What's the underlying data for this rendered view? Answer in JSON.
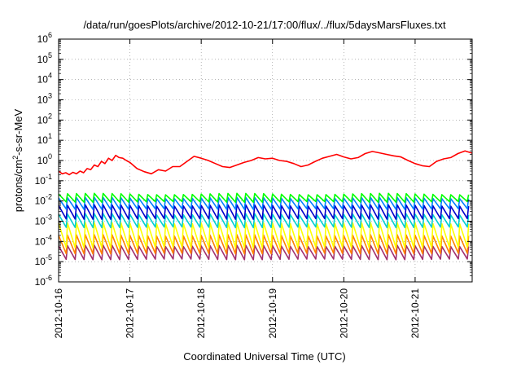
{
  "chart_data": {
    "type": "line",
    "title": "/data/run/goesPlots/archive/2012-10-21/17:00/flux/../flux/5daysMarsFluxes.txt",
    "xlabel": "Coordinated Universal Time (UTC)",
    "ylabel": "protons/cm2-s-sr-MeV",
    "ylabel_parts": {
      "pre": "protons/cm",
      "sup": "2",
      "post": "-s-sr-MeV"
    },
    "x_ticks": [
      "2012-10-16",
      "2012-10-17",
      "2012-10-18",
      "2012-10-19",
      "2012-10-20",
      "2012-10-21"
    ],
    "xlim_days": [
      0,
      5.8
    ],
    "y_scale": "log",
    "ylim": [
      1e-06,
      1000000.0
    ],
    "y_ticks": [
      {
        "base": "10",
        "exp": "-6"
      },
      {
        "base": "10",
        "exp": "-5"
      },
      {
        "base": "10",
        "exp": "-4"
      },
      {
        "base": "10",
        "exp": "-3"
      },
      {
        "base": "10",
        "exp": "-2"
      },
      {
        "base": "10",
        "exp": "-1"
      },
      {
        "base": "10",
        "exp": "0"
      },
      {
        "base": "10",
        "exp": "1"
      },
      {
        "base": "10",
        "exp": "2"
      },
      {
        "base": "10",
        "exp": "3"
      },
      {
        "base": "10",
        "exp": "4"
      },
      {
        "base": "10",
        "exp": "5"
      },
      {
        "base": "10",
        "exp": "6"
      }
    ],
    "grid": true,
    "legend": "none",
    "series": [
      {
        "color": "#ff0000",
        "x": [
          0.0,
          0.05,
          0.1,
          0.15,
          0.2,
          0.25,
          0.3,
          0.35,
          0.4,
          0.45,
          0.5,
          0.55,
          0.6,
          0.65,
          0.7,
          0.75,
          0.8,
          0.85,
          0.9,
          0.95,
          1.0,
          1.1,
          1.2,
          1.3,
          1.4,
          1.5,
          1.6,
          1.7,
          1.8,
          1.9,
          2.0,
          2.1,
          2.2,
          2.3,
          2.4,
          2.5,
          2.6,
          2.7,
          2.8,
          2.9,
          3.0,
          3.1,
          3.2,
          3.3,
          3.4,
          3.5,
          3.6,
          3.7,
          3.8,
          3.9,
          4.0,
          4.1,
          4.2,
          4.3,
          4.4,
          4.5,
          4.6,
          4.7,
          4.8,
          4.9,
          5.0,
          5.1,
          5.2,
          5.3,
          5.4,
          5.5,
          5.6,
          5.7,
          5.8
        ],
        "y": [
          0.3,
          0.22,
          0.25,
          0.2,
          0.26,
          0.22,
          0.3,
          0.25,
          0.4,
          0.35,
          0.6,
          0.5,
          0.9,
          0.7,
          1.3,
          1.0,
          1.8,
          1.4,
          1.3,
          1.0,
          0.8,
          0.4,
          0.28,
          0.22,
          0.35,
          0.3,
          0.5,
          0.5,
          0.9,
          1.6,
          1.3,
          1.0,
          0.7,
          0.5,
          0.45,
          0.6,
          0.8,
          1.0,
          1.4,
          1.2,
          1.3,
          1.0,
          0.9,
          0.7,
          0.5,
          0.6,
          0.9,
          1.3,
          1.6,
          2.0,
          1.5,
          1.2,
          1.4,
          2.2,
          2.8,
          2.4,
          2.0,
          1.7,
          1.5,
          1.0,
          0.7,
          0.55,
          0.5,
          0.9,
          1.2,
          1.4,
          2.2,
          3.0,
          2.3
        ]
      },
      {
        "color": "#00ff00",
        "x": [
          0,
          5.8
        ],
        "y": [
          0.015,
          0.015
        ],
        "periodic": {
          "period": 0.125,
          "peak": 0.022,
          "trough": 0.009
        }
      },
      {
        "color": "#0080ff",
        "x": [
          0,
          5.8
        ],
        "y": [
          0.008,
          0.008
        ],
        "periodic": {
          "period": 0.125,
          "peak": 0.014,
          "trough": 0.004
        }
      },
      {
        "color": "#0000cc",
        "x": [
          0,
          5.8
        ],
        "y": [
          0.003,
          0.003
        ],
        "periodic": {
          "period": 0.125,
          "peak": 0.006,
          "trough": 0.0013
        }
      },
      {
        "color": "#00d0d0",
        "x": [
          0,
          5.8
        ],
        "y": [
          0.0012,
          0.0012
        ],
        "periodic": {
          "period": 0.125,
          "peak": 0.0022,
          "trough": 0.0005
        }
      },
      {
        "color": "#ffff00",
        "x": [
          0,
          5.8
        ],
        "y": [
          0.0002,
          0.0002
        ],
        "periodic": {
          "period": 0.125,
          "peak": 0.0008,
          "trough": 5e-05
        }
      },
      {
        "color": "#ff8000",
        "x": [
          0,
          5.8
        ],
        "y": [
          6e-05,
          6e-05
        ],
        "periodic": {
          "period": 0.125,
          "peak": 0.0002,
          "trough": 2.5e-05
        }
      },
      {
        "color": "#a03070",
        "x": [
          0,
          5.8
        ],
        "y": [
          3e-05,
          3e-05
        ],
        "periodic": {
          "period": 0.125,
          "peak": 6e-05,
          "trough": 1.3e-05
        }
      }
    ]
  }
}
